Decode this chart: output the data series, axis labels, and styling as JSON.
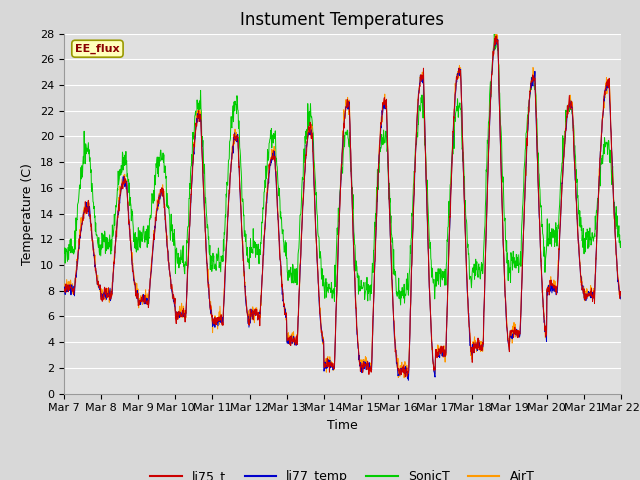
{
  "title": "Instument Temperatures",
  "xlabel": "Time",
  "ylabel": "Temperature (C)",
  "ylim": [
    0,
    28
  ],
  "annotation_text": "EE_flux",
  "legend_labels": [
    "li75_t",
    "li77_temp",
    "SonicT",
    "AirT"
  ],
  "line_colors": [
    "#cc0000",
    "#0000cc",
    "#00cc00",
    "#ff9900"
  ],
  "background_color": "#d8d8d8",
  "plot_bg_color": "#e0e0e0",
  "grid_color": "#ffffff",
  "title_fontsize": 12,
  "tick_fontsize": 8,
  "label_fontsize": 9,
  "xtick_labels": [
    "Mar 7",
    "Mar 8",
    "Mar 9",
    "Mar 10",
    "Mar 11",
    "Mar 12",
    "Mar 13",
    "Mar 14",
    "Mar 15",
    "Mar 16",
    "Mar 17",
    "Mar 18",
    "Mar 19",
    "Mar 20",
    "Mar 21",
    "Mar 22"
  ]
}
